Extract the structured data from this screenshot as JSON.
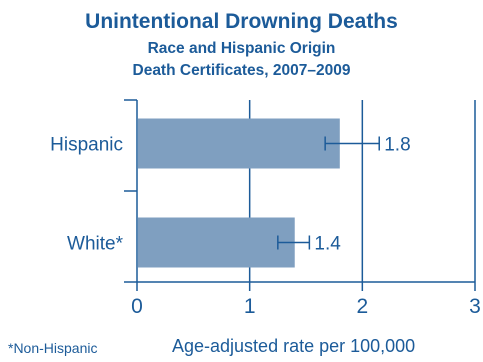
{
  "chart_data": {
    "type": "bar",
    "orientation": "horizontal",
    "title": "Unintentional Drowning Deaths",
    "subtitle_1": "Race and Hispanic Origin",
    "subtitle_2": "Death Certificates, 2007–2009",
    "categories": [
      "Hispanic",
      "White*"
    ],
    "values": [
      1.8,
      1.4
    ],
    "value_labels": [
      "1.8",
      "1.4"
    ],
    "error_bars": [
      {
        "low": 1.67,
        "high": 2.15
      },
      {
        "low": 1.25,
        "high": 1.53
      }
    ],
    "xlabel": "Age-adjusted rate per 100,000",
    "footnote": "*Non-Hispanic",
    "xlim": [
      0,
      3
    ],
    "xticks": [
      "0",
      "1",
      "2",
      "3"
    ],
    "grid": "vertical",
    "colors": {
      "bar": "#7f9fc0",
      "text": "#1c5b99",
      "axis": "#1c5b99"
    }
  }
}
